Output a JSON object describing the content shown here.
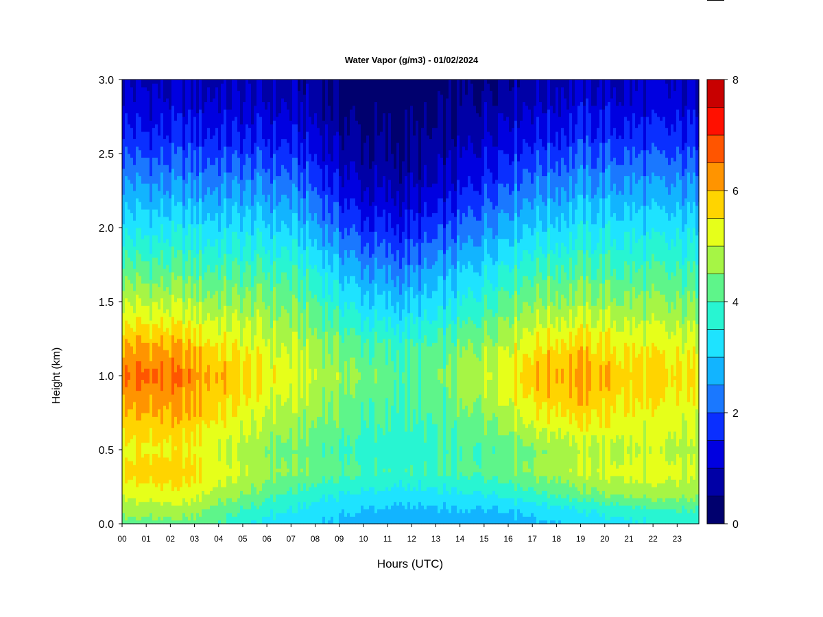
{
  "chart_data": {
    "type": "heatmap",
    "title": "Water Vapor (g/m3) - 01/02/2024",
    "xlabel": "Hours (UTC)",
    "ylabel": "Height (km)",
    "x_ticks": [
      "00",
      "01",
      "02",
      "03",
      "04",
      "05",
      "06",
      "07",
      "08",
      "09",
      "10",
      "11",
      "12",
      "13",
      "14",
      "15",
      "16",
      "17",
      "18",
      "19",
      "20",
      "21",
      "22",
      "23"
    ],
    "xlim": [
      0,
      23.9
    ],
    "y_ticks": [
      "0.0",
      "0.5",
      "1.0",
      "1.5",
      "2.0",
      "2.5",
      "3.0"
    ],
    "ylim": [
      0,
      3
    ],
    "colorbar": {
      "range": [
        0,
        8
      ],
      "step": 0.5,
      "tick_labels": [
        "0",
        "2",
        "4",
        "6",
        "8"
      ],
      "colors": [
        "#00006e",
        "#0000a6",
        "#0000e0",
        "#0a2fff",
        "#1a78ff",
        "#12b4ff",
        "#1ee3ff",
        "#28f5d2",
        "#5ef58a",
        "#a6f545",
        "#e6ff1a",
        "#ffd400",
        "#ff9400",
        "#ff5500",
        "#ff1000",
        "#c80000"
      ]
    },
    "x": [
      0,
      1,
      2,
      3,
      4,
      5,
      6,
      7,
      8,
      9,
      10,
      11,
      12,
      13,
      14,
      15,
      16,
      17,
      18,
      19,
      20,
      21,
      22,
      23,
      23.9
    ],
    "z_rows": [
      {
        "height": 0.0,
        "values": [
          4.3,
          4.3,
          4.3,
          4.3,
          4.0,
          3.6,
          3.3,
          3.2,
          3.1,
          2.9,
          2.8,
          2.7,
          2.6,
          2.6,
          2.6,
          2.7,
          2.8,
          2.9,
          3.0,
          3.1,
          3.3,
          3.4,
          3.5,
          3.6,
          3.6
        ]
      },
      {
        "height": 0.1,
        "values": [
          4.7,
          4.8,
          4.8,
          4.7,
          4.3,
          4.0,
          3.7,
          3.5,
          3.3,
          3.1,
          3.0,
          2.9,
          2.9,
          2.9,
          3.0,
          3.0,
          3.1,
          3.2,
          3.4,
          3.5,
          3.7,
          3.8,
          3.9,
          4.0,
          4.0
        ]
      },
      {
        "height": 0.2,
        "values": [
          5.1,
          5.2,
          5.3,
          5.2,
          4.8,
          4.5,
          4.2,
          3.9,
          3.7,
          3.5,
          3.4,
          3.3,
          3.3,
          3.3,
          3.4,
          3.5,
          3.7,
          3.9,
          4.1,
          4.3,
          4.5,
          4.6,
          4.7,
          4.7,
          4.6
        ]
      },
      {
        "height": 0.35,
        "values": [
          5.6,
          5.8,
          5.8,
          5.7,
          5.3,
          5.0,
          4.7,
          4.5,
          4.4,
          4.2,
          4.0,
          3.9,
          3.9,
          3.9,
          4.0,
          4.2,
          4.4,
          4.6,
          4.8,
          5.0,
          5.1,
          5.2,
          5.2,
          5.1,
          5.0
        ]
      },
      {
        "height": 0.5,
        "values": [
          5.3,
          5.4,
          5.4,
          5.3,
          5.0,
          4.8,
          4.5,
          4.3,
          4.2,
          4.0,
          3.8,
          3.7,
          3.7,
          3.8,
          3.9,
          4.1,
          4.3,
          4.5,
          4.7,
          4.8,
          4.9,
          4.9,
          4.9,
          4.8,
          4.8
        ]
      },
      {
        "height": 0.75,
        "values": [
          5.9,
          6.0,
          6.0,
          5.9,
          5.6,
          5.3,
          5.0,
          4.8,
          4.6,
          4.4,
          4.1,
          4.0,
          3.9,
          4.0,
          4.3,
          4.6,
          5.0,
          5.4,
          5.6,
          5.7,
          5.6,
          5.4,
          5.3,
          5.2,
          5.2
        ]
      },
      {
        "height": 1.0,
        "values": [
          6.5,
          6.6,
          6.5,
          6.3,
          6.0,
          5.7,
          5.4,
          5.2,
          5.0,
          4.7,
          4.4,
          4.2,
          4.1,
          4.2,
          4.6,
          5.0,
          5.6,
          5.9,
          6.1,
          6.1,
          5.9,
          5.7,
          5.6,
          5.5,
          5.5
        ]
      },
      {
        "height": 1.2,
        "values": [
          6.0,
          6.1,
          6.0,
          5.8,
          5.5,
          5.3,
          5.1,
          4.9,
          4.7,
          4.4,
          4.1,
          3.9,
          3.9,
          4.0,
          4.3,
          4.7,
          5.1,
          5.5,
          5.7,
          5.7,
          5.6,
          5.4,
          5.3,
          5.2,
          5.2
        ]
      },
      {
        "height": 1.45,
        "values": [
          5.1,
          5.1,
          5.0,
          4.9,
          4.8,
          4.7,
          4.6,
          4.4,
          4.2,
          3.7,
          3.3,
          3.1,
          3.1,
          3.2,
          3.5,
          4.0,
          4.5,
          4.7,
          4.8,
          4.8,
          4.8,
          4.7,
          4.6,
          4.5,
          4.5
        ]
      },
      {
        "height": 1.7,
        "values": [
          4.3,
          4.2,
          4.2,
          4.1,
          4.1,
          4.0,
          4.0,
          3.9,
          3.6,
          3.0,
          2.6,
          2.4,
          2.4,
          2.6,
          2.9,
          3.3,
          3.8,
          4.0,
          4.1,
          4.1,
          4.1,
          4.0,
          4.0,
          3.9,
          3.9
        ]
      },
      {
        "height": 2.0,
        "values": [
          3.3,
          3.3,
          3.3,
          3.3,
          3.2,
          3.2,
          3.1,
          3.0,
          2.7,
          2.1,
          1.7,
          1.5,
          1.5,
          1.7,
          2.0,
          2.5,
          2.9,
          3.1,
          3.2,
          3.3,
          3.3,
          3.3,
          3.2,
          3.2,
          3.2
        ]
      },
      {
        "height": 2.3,
        "values": [
          2.5,
          2.5,
          2.4,
          2.4,
          2.4,
          2.4,
          2.3,
          2.2,
          1.9,
          1.3,
          0.9,
          0.8,
          0.8,
          0.9,
          1.2,
          1.7,
          2.1,
          2.3,
          2.4,
          2.5,
          2.5,
          2.5,
          2.4,
          2.4,
          2.4
        ]
      },
      {
        "height": 2.6,
        "values": [
          1.7,
          1.6,
          1.6,
          1.6,
          1.6,
          1.5,
          1.5,
          1.4,
          1.2,
          0.7,
          0.5,
          0.4,
          0.4,
          0.5,
          0.7,
          1.1,
          1.4,
          1.5,
          1.6,
          1.7,
          1.7,
          1.7,
          1.6,
          1.6,
          1.6
        ]
      },
      {
        "height": 2.85,
        "values": [
          1.2,
          1.1,
          1.1,
          1.1,
          1.1,
          1.0,
          1.0,
          0.9,
          0.8,
          0.4,
          0.2,
          0.2,
          0.2,
          0.2,
          0.4,
          0.7,
          0.9,
          1.0,
          1.1,
          1.2,
          1.2,
          1.1,
          1.1,
          1.1,
          1.1
        ]
      },
      {
        "height": 3.0,
        "values": [
          1.0,
          0.9,
          0.9,
          0.9,
          0.9,
          0.8,
          0.8,
          0.7,
          0.6,
          0.3,
          0.1,
          0.1,
          0.1,
          0.1,
          0.3,
          0.5,
          0.7,
          0.8,
          0.9,
          1.0,
          1.0,
          0.9,
          0.9,
          0.9,
          0.9
        ]
      }
    ]
  }
}
